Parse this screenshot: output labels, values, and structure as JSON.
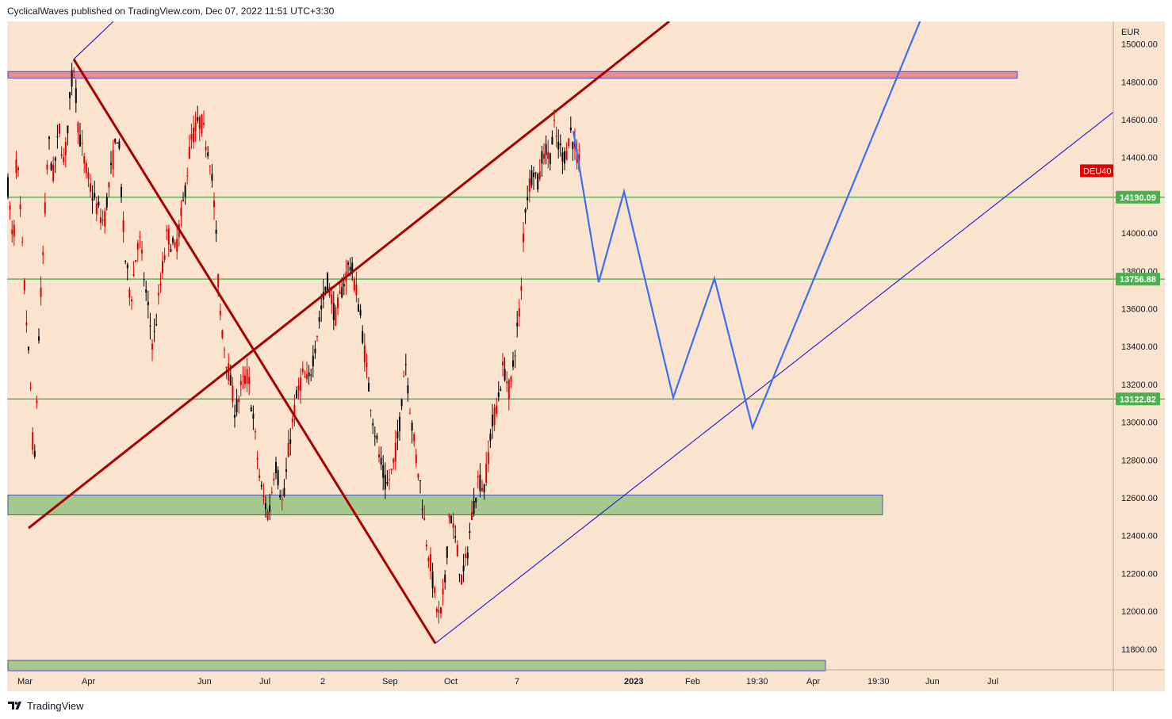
{
  "header": {
    "publisher_line": "CyclicalWaves published on TradingView.com, Dec 07, 2022 11:51 UTC+3:30"
  },
  "footer": {
    "brand": "TradingView",
    "logo_icon": "tradingview-logo-icon"
  },
  "colors": {
    "background": "#fbe4cf",
    "candle_up": "#000000",
    "candle_down": "#e00000",
    "channel_line": "#a80000",
    "projection_line": "#3c6ef0",
    "trend_line": "#1c1cc4",
    "support_line": "#4caf50",
    "green_zone": "#a5c88e",
    "red_zone": "#f08a8a",
    "symbol_label": "#e00000"
  },
  "chart_data": {
    "type": "candlestick",
    "symbol": "DEU40",
    "currency": "EUR",
    "y_axis": {
      "ticks": [
        11800,
        12000,
        12200,
        12400,
        12600,
        12800,
        13000,
        13200,
        13400,
        13600,
        13800,
        14000,
        14200,
        14400,
        14600,
        14800,
        15000
      ],
      "tick_labels": [
        "11800.00",
        "12000.00",
        "12200.00",
        "12400.00",
        "12600.00",
        "12800.00",
        "13000.00",
        "13200.00",
        "13400.00",
        "13600.00",
        "13800.00",
        "14000.00",
        "14200.00",
        "14400.00",
        "14600.00",
        "14800.00",
        "15000.00"
      ],
      "range": [
        11690,
        15120
      ]
    },
    "x_axis": {
      "tick_labels": [
        "Mar",
        "Apr",
        "Jun",
        "Jul",
        "2",
        "Sep",
        "Oct",
        "7",
        "2023",
        "Feb",
        "19:30",
        "Apr",
        "19:30",
        "Jun",
        "Jul"
      ],
      "bold_labels": [
        "2023"
      ]
    },
    "price_labels": [
      {
        "text": "DEU40",
        "value": 14330,
        "kind": "symbol"
      },
      {
        "text": "14190.09",
        "value": 14190.09,
        "kind": "level"
      },
      {
        "text": "13756.88",
        "value": 13756.88,
        "kind": "level"
      },
      {
        "text": "13122.82",
        "value": 13122.82,
        "kind": "level"
      }
    ],
    "horizontal_levels": [
      14190.09,
      13756.88,
      13122.82
    ],
    "zones": [
      {
        "name": "resistance-zone",
        "low": 14820,
        "high": 14855,
        "color": "red"
      },
      {
        "name": "support-zone",
        "low": 12510,
        "high": 12615,
        "color": "green"
      },
      {
        "name": "lower-support-zone",
        "low": 11685,
        "high": 11740,
        "color": "green"
      }
    ],
    "price_path": [
      {
        "x": 0,
        "y": 14300
      },
      {
        "x": 8,
        "y": 13900
      },
      {
        "x": 12,
        "y": 14450
      },
      {
        "x": 22,
        "y": 13700
      },
      {
        "x": 30,
        "y": 13150
      },
      {
        "x": 34,
        "y": 12700
      },
      {
        "x": 40,
        "y": 13450
      },
      {
        "x": 46,
        "y": 13950
      },
      {
        "x": 52,
        "y": 14500
      },
      {
        "x": 58,
        "y": 14300
      },
      {
        "x": 66,
        "y": 14550
      },
      {
        "x": 72,
        "y": 14350
      },
      {
        "x": 80,
        "y": 14750
      },
      {
        "x": 84,
        "y": 14900
      },
      {
        "x": 90,
        "y": 14550
      },
      {
        "x": 96,
        "y": 14400
      },
      {
        "x": 104,
        "y": 14250
      },
      {
        "x": 112,
        "y": 14150
      },
      {
        "x": 122,
        "y": 14050
      },
      {
        "x": 130,
        "y": 14300
      },
      {
        "x": 140,
        "y": 14550
      },
      {
        "x": 148,
        "y": 13900
      },
      {
        "x": 156,
        "y": 13650
      },
      {
        "x": 166,
        "y": 14000
      },
      {
        "x": 176,
        "y": 13650
      },
      {
        "x": 184,
        "y": 13400
      },
      {
        "x": 194,
        "y": 13750
      },
      {
        "x": 202,
        "y": 14000
      },
      {
        "x": 212,
        "y": 13900
      },
      {
        "x": 222,
        "y": 14150
      },
      {
        "x": 232,
        "y": 14500
      },
      {
        "x": 244,
        "y": 14600
      },
      {
        "x": 256,
        "y": 14400
      },
      {
        "x": 262,
        "y": 14100
      },
      {
        "x": 268,
        "y": 13600
      },
      {
        "x": 274,
        "y": 13400
      },
      {
        "x": 280,
        "y": 13250
      },
      {
        "x": 288,
        "y": 13050
      },
      {
        "x": 296,
        "y": 13200
      },
      {
        "x": 304,
        "y": 13250
      },
      {
        "x": 312,
        "y": 12950
      },
      {
        "x": 320,
        "y": 12650
      },
      {
        "x": 330,
        "y": 12500
      },
      {
        "x": 338,
        "y": 12800
      },
      {
        "x": 348,
        "y": 12550
      },
      {
        "x": 356,
        "y": 12900
      },
      {
        "x": 364,
        "y": 13100
      },
      {
        "x": 372,
        "y": 13250
      },
      {
        "x": 380,
        "y": 13200
      },
      {
        "x": 388,
        "y": 13400
      },
      {
        "x": 396,
        "y": 13600
      },
      {
        "x": 404,
        "y": 13750
      },
      {
        "x": 414,
        "y": 13550
      },
      {
        "x": 422,
        "y": 13700
      },
      {
        "x": 432,
        "y": 13850
      },
      {
        "x": 440,
        "y": 13700
      },
      {
        "x": 446,
        "y": 13550
      },
      {
        "x": 454,
        "y": 13250
      },
      {
        "x": 462,
        "y": 13000
      },
      {
        "x": 470,
        "y": 12800
      },
      {
        "x": 478,
        "y": 12650
      },
      {
        "x": 486,
        "y": 12750
      },
      {
        "x": 494,
        "y": 12950
      },
      {
        "x": 502,
        "y": 13350
      },
      {
        "x": 510,
        "y": 13000
      },
      {
        "x": 516,
        "y": 12800
      },
      {
        "x": 522,
        "y": 12650
      },
      {
        "x": 528,
        "y": 12400
      },
      {
        "x": 534,
        "y": 12250
      },
      {
        "x": 540,
        "y": 12050
      },
      {
        "x": 546,
        "y": 11950
      },
      {
        "x": 552,
        "y": 12150
      },
      {
        "x": 558,
        "y": 12550
      },
      {
        "x": 566,
        "y": 12350
      },
      {
        "x": 574,
        "y": 12150
      },
      {
        "x": 580,
        "y": 12300
      },
      {
        "x": 586,
        "y": 12500
      },
      {
        "x": 594,
        "y": 12700
      },
      {
        "x": 602,
        "y": 12650
      },
      {
        "x": 610,
        "y": 12950
      },
      {
        "x": 618,
        "y": 13100
      },
      {
        "x": 626,
        "y": 13300
      },
      {
        "x": 634,
        "y": 13150
      },
      {
        "x": 642,
        "y": 13450
      },
      {
        "x": 648,
        "y": 13650
      },
      {
        "x": 652,
        "y": 14100
      },
      {
        "x": 658,
        "y": 14250
      },
      {
        "x": 664,
        "y": 14350
      },
      {
        "x": 670,
        "y": 14250
      },
      {
        "x": 676,
        "y": 14450
      },
      {
        "x": 684,
        "y": 14400
      },
      {
        "x": 690,
        "y": 14550
      },
      {
        "x": 696,
        "y": 14450
      },
      {
        "x": 704,
        "y": 14400
      },
      {
        "x": 710,
        "y": 14550
      },
      {
        "x": 716,
        "y": 14450
      },
      {
        "x": 722,
        "y": 14350
      }
    ],
    "drawings": {
      "projection_path": [
        {
          "x": 714,
          "y": 14540
        },
        {
          "x": 746,
          "y": 13740
        },
        {
          "x": 778,
          "y": 14220
        },
        {
          "x": 840,
          "y": 13130
        },
        {
          "x": 892,
          "y": 13760
        },
        {
          "x": 940,
          "y": 12970
        },
        {
          "x": 1160,
          "y": 15210
        }
      ],
      "channel_lines": [
        {
          "from": {
            "x": 27,
            "y": 12440
          },
          "to": {
            "x": 835,
            "y": 15120
          }
        },
        {
          "from": {
            "x": 84,
            "y": 14920
          },
          "to": {
            "x": 540,
            "y": 11830
          }
        }
      ],
      "trend_lines": [
        {
          "from": {
            "x": 540,
            "y": 11830
          },
          "to": {
            "x": 1395,
            "y": 14640
          }
        },
        {
          "from": {
            "x": 84,
            "y": 14920
          },
          "to": {
            "x": 134,
            "y": 15120
          }
        }
      ]
    }
  }
}
